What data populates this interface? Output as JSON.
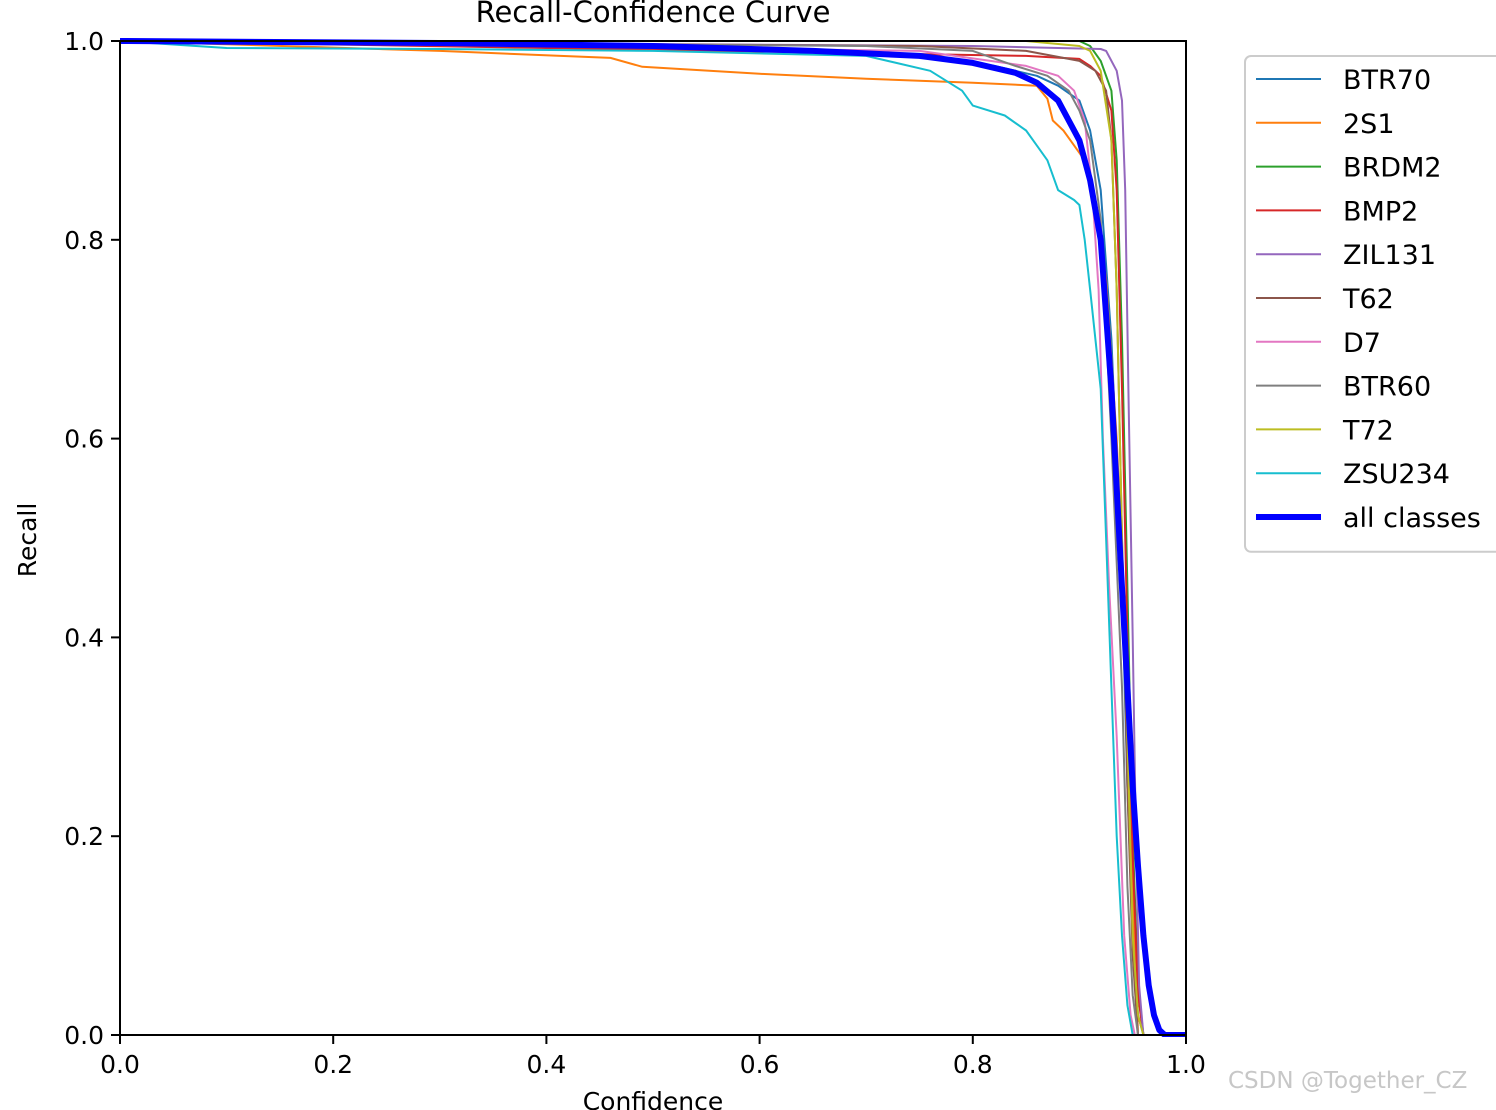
{
  "chart_data": {
    "type": "line",
    "title": "Recall-Confidence Curve",
    "xlabel": "Confidence",
    "ylabel": "Recall",
    "xlim": [
      0,
      1
    ],
    "ylim": [
      0,
      1
    ],
    "xticks": [
      "0.0",
      "0.2",
      "0.4",
      "0.6",
      "0.8",
      "1.0"
    ],
    "yticks": [
      "0.0",
      "0.2",
      "0.4",
      "0.6",
      "0.8",
      "1.0"
    ],
    "legend_position": "outside-right-top",
    "grid": false,
    "series": [
      {
        "name": "BTR70",
        "color": "#1f77b4",
        "width": 2,
        "x": [
          0,
          0.7,
          0.82,
          0.86,
          0.88,
          0.9,
          0.91,
          0.92,
          0.93,
          0.94,
          0.945,
          0.95,
          0.955,
          0.96,
          1.0
        ],
        "y": [
          1,
          0.99,
          0.975,
          0.965,
          0.955,
          0.94,
          0.91,
          0.85,
          0.7,
          0.45,
          0.25,
          0.1,
          0.02,
          0,
          0
        ]
      },
      {
        "name": "2S1",
        "color": "#ff7f0e",
        "width": 2,
        "x": [
          0,
          0.3,
          0.46,
          0.49,
          0.6,
          0.7,
          0.8,
          0.86,
          0.87,
          0.875,
          0.885,
          0.895,
          0.905,
          0.915,
          0.925,
          0.935,
          0.945,
          0.95,
          0.955,
          1.0
        ],
        "y": [
          1,
          0.99,
          0.983,
          0.974,
          0.967,
          0.962,
          0.958,
          0.955,
          0.942,
          0.92,
          0.91,
          0.895,
          0.88,
          0.84,
          0.76,
          0.6,
          0.35,
          0.15,
          0,
          0
        ]
      },
      {
        "name": "BRDM2",
        "color": "#2ca02c",
        "width": 2,
        "x": [
          0,
          0.85,
          0.9,
          0.91,
          0.92,
          0.93,
          0.935,
          0.94,
          0.945,
          0.95,
          0.955,
          0.96,
          1.0
        ],
        "y": [
          1,
          1,
          1,
          0.995,
          0.98,
          0.95,
          0.88,
          0.7,
          0.45,
          0.2,
          0.05,
          0,
          0
        ]
      },
      {
        "name": "BMP2",
        "color": "#d62728",
        "width": 2,
        "x": [
          0,
          0.85,
          0.9,
          0.91,
          0.92,
          0.93,
          0.935,
          0.94,
          0.945,
          0.95,
          0.955,
          0.96,
          1.0
        ],
        "y": [
          1,
          0.985,
          0.982,
          0.975,
          0.965,
          0.93,
          0.85,
          0.65,
          0.4,
          0.18,
          0.04,
          0,
          0
        ]
      },
      {
        "name": "ZIL131",
        "color": "#9467bd",
        "width": 2,
        "x": [
          0,
          0.8,
          0.92,
          0.925,
          0.935,
          0.94,
          0.943,
          0.946,
          0.95,
          0.953,
          0.956,
          0.96,
          1.0
        ],
        "y": [
          1,
          0.995,
          0.992,
          0.99,
          0.97,
          0.94,
          0.85,
          0.65,
          0.4,
          0.2,
          0.05,
          0,
          0
        ]
      },
      {
        "name": "T62",
        "color": "#8c564b",
        "width": 2,
        "x": [
          0,
          0.75,
          0.85,
          0.9,
          0.915,
          0.925,
          0.93,
          0.935,
          0.94,
          0.945,
          0.95,
          0.955,
          1.0
        ],
        "y": [
          1,
          0.995,
          0.99,
          0.98,
          0.97,
          0.95,
          0.9,
          0.75,
          0.5,
          0.25,
          0.08,
          0,
          0
        ]
      },
      {
        "name": "D7",
        "color": "#e377c2",
        "width": 2,
        "x": [
          0,
          0.75,
          0.85,
          0.88,
          0.895,
          0.905,
          0.912,
          0.918,
          0.922,
          0.928,
          0.935,
          0.942,
          0.948,
          0.952,
          1.0
        ],
        "y": [
          1,
          0.99,
          0.975,
          0.965,
          0.95,
          0.92,
          0.85,
          0.75,
          0.6,
          0.45,
          0.3,
          0.1,
          0.02,
          0,
          0
        ]
      },
      {
        "name": "BTR60",
        "color": "#7f7f7f",
        "width": 2,
        "x": [
          0,
          0.7,
          0.8,
          0.84,
          0.87,
          0.89,
          0.9,
          0.91,
          0.92,
          0.93,
          0.94,
          0.945,
          0.95,
          0.955,
          1.0
        ],
        "y": [
          1,
          0.995,
          0.99,
          0.975,
          0.965,
          0.95,
          0.93,
          0.9,
          0.82,
          0.6,
          0.35,
          0.15,
          0.04,
          0,
          0
        ]
      },
      {
        "name": "T72",
        "color": "#bcbd22",
        "width": 2,
        "x": [
          0,
          0.85,
          0.9,
          0.91,
          0.92,
          0.93,
          0.935,
          0.94,
          0.945,
          0.95,
          0.955,
          0.96,
          1.0
        ],
        "y": [
          1,
          1,
          0.995,
          0.99,
          0.97,
          0.9,
          0.75,
          0.5,
          0.3,
          0.1,
          0.02,
          0,
          0
        ]
      },
      {
        "name": "ZSU234",
        "color": "#17becf",
        "width": 2,
        "x": [
          0,
          0.1,
          0.3,
          0.5,
          0.7,
          0.76,
          0.79,
          0.8,
          0.83,
          0.85,
          0.86,
          0.87,
          0.88,
          0.895,
          0.9,
          0.905,
          0.91,
          0.92,
          0.925,
          0.93,
          0.935,
          0.94,
          0.945,
          0.95,
          1.0
        ],
        "y": [
          1,
          0.993,
          0.992,
          0.99,
          0.985,
          0.97,
          0.95,
          0.935,
          0.925,
          0.91,
          0.895,
          0.88,
          0.85,
          0.84,
          0.835,
          0.8,
          0.75,
          0.65,
          0.5,
          0.35,
          0.2,
          0.1,
          0.03,
          0,
          0
        ]
      },
      {
        "name": "all classes",
        "color": "#0000ff",
        "width": 6,
        "x": [
          0,
          0.3,
          0.5,
          0.65,
          0.75,
          0.8,
          0.84,
          0.86,
          0.88,
          0.9,
          0.91,
          0.92,
          0.93,
          0.935,
          0.94,
          0.945,
          0.95,
          0.955,
          0.96,
          0.965,
          0.97,
          0.975,
          0.98,
          1.0
        ],
        "y": [
          1,
          0.998,
          0.995,
          0.99,
          0.985,
          0.978,
          0.968,
          0.958,
          0.94,
          0.9,
          0.86,
          0.8,
          0.65,
          0.55,
          0.45,
          0.35,
          0.25,
          0.17,
          0.1,
          0.05,
          0.02,
          0.005,
          0,
          0
        ]
      }
    ]
  },
  "watermark": "CSDN @Together_CZ"
}
